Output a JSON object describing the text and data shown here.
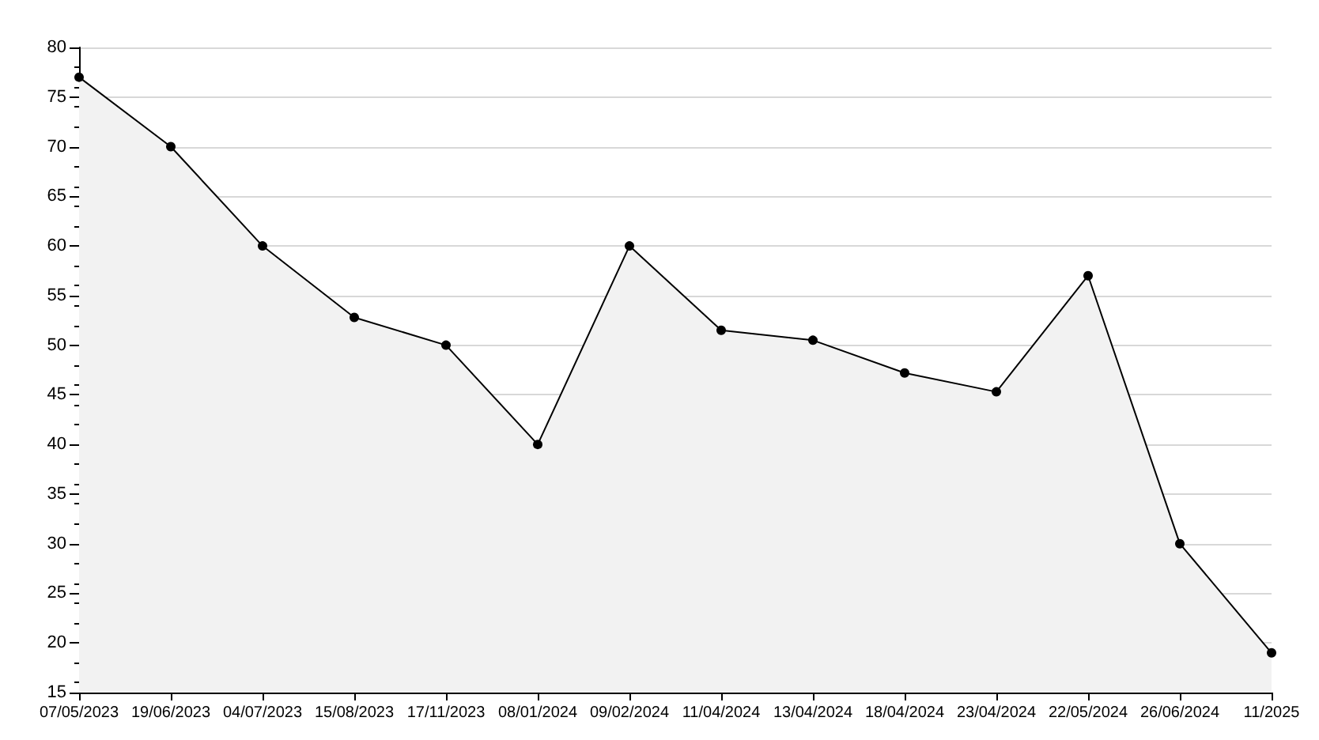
{
  "chart_data": {
    "type": "area",
    "categories": [
      "07/05/2023",
      "19/06/2023",
      "04/07/2023",
      "15/08/2023",
      "17/11/2023",
      "08/01/2024",
      "09/02/2024",
      "11/04/2024",
      "13/04/2024",
      "18/04/2024",
      "23/04/2024",
      "22/05/2024",
      "26/06/2024",
      "11/2025"
    ],
    "series": [
      {
        "color": "#000000",
        "values": [
          77,
          70,
          60,
          52.8,
          50,
          40,
          60,
          51.5,
          50.5,
          47.2,
          45.3,
          57,
          30,
          19
        ]
      }
    ],
    "ylim": [
      15,
      80
    ],
    "yticks": [
      15,
      20,
      25,
      30,
      35,
      40,
      45,
      50,
      55,
      60,
      65,
      70,
      75,
      80
    ],
    "grid": "y",
    "marker": "circle",
    "line_style": "solid"
  }
}
